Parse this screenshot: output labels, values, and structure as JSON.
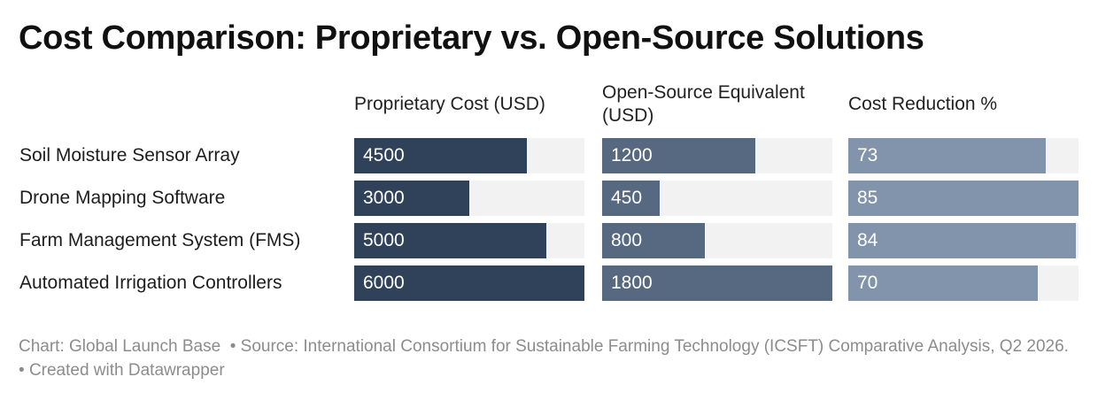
{
  "title": "Cost Comparison: Proprietary vs. Open-Source Solutions",
  "footer": {
    "chart_credit": "Chart: Global Launch Base",
    "source": "Source: International Consortium for Sustainable Farming Technology (ICSFT) Comparative Analysis, Q2 2026.",
    "created_with": "Created with Datawrapper",
    "separator": "•"
  },
  "colors": {
    "proprietary": "#2f425a",
    "open_source": "#566981",
    "reduction": "#8194ab",
    "track": "#f2f2f2"
  },
  "chart_data": {
    "type": "table",
    "title": "Cost Comparison: Proprietary vs. Open-Source Solutions",
    "categories": [
      "Soil Moisture Sensor Array",
      "Drone Mapping Software",
      "Farm Management System (FMS)",
      "Automated Irrigation Controllers"
    ],
    "columns": [
      {
        "name": "Proprietary Cost (USD)",
        "max": 6000,
        "values": [
          4500,
          3000,
          5000,
          6000
        ]
      },
      {
        "name": "Open-Source Equivalent (USD)",
        "max": 1800,
        "values": [
          1200,
          450,
          800,
          1800
        ]
      },
      {
        "name": "Cost Reduction %",
        "max": 85,
        "values": [
          73,
          85,
          84,
          70
        ]
      }
    ]
  }
}
